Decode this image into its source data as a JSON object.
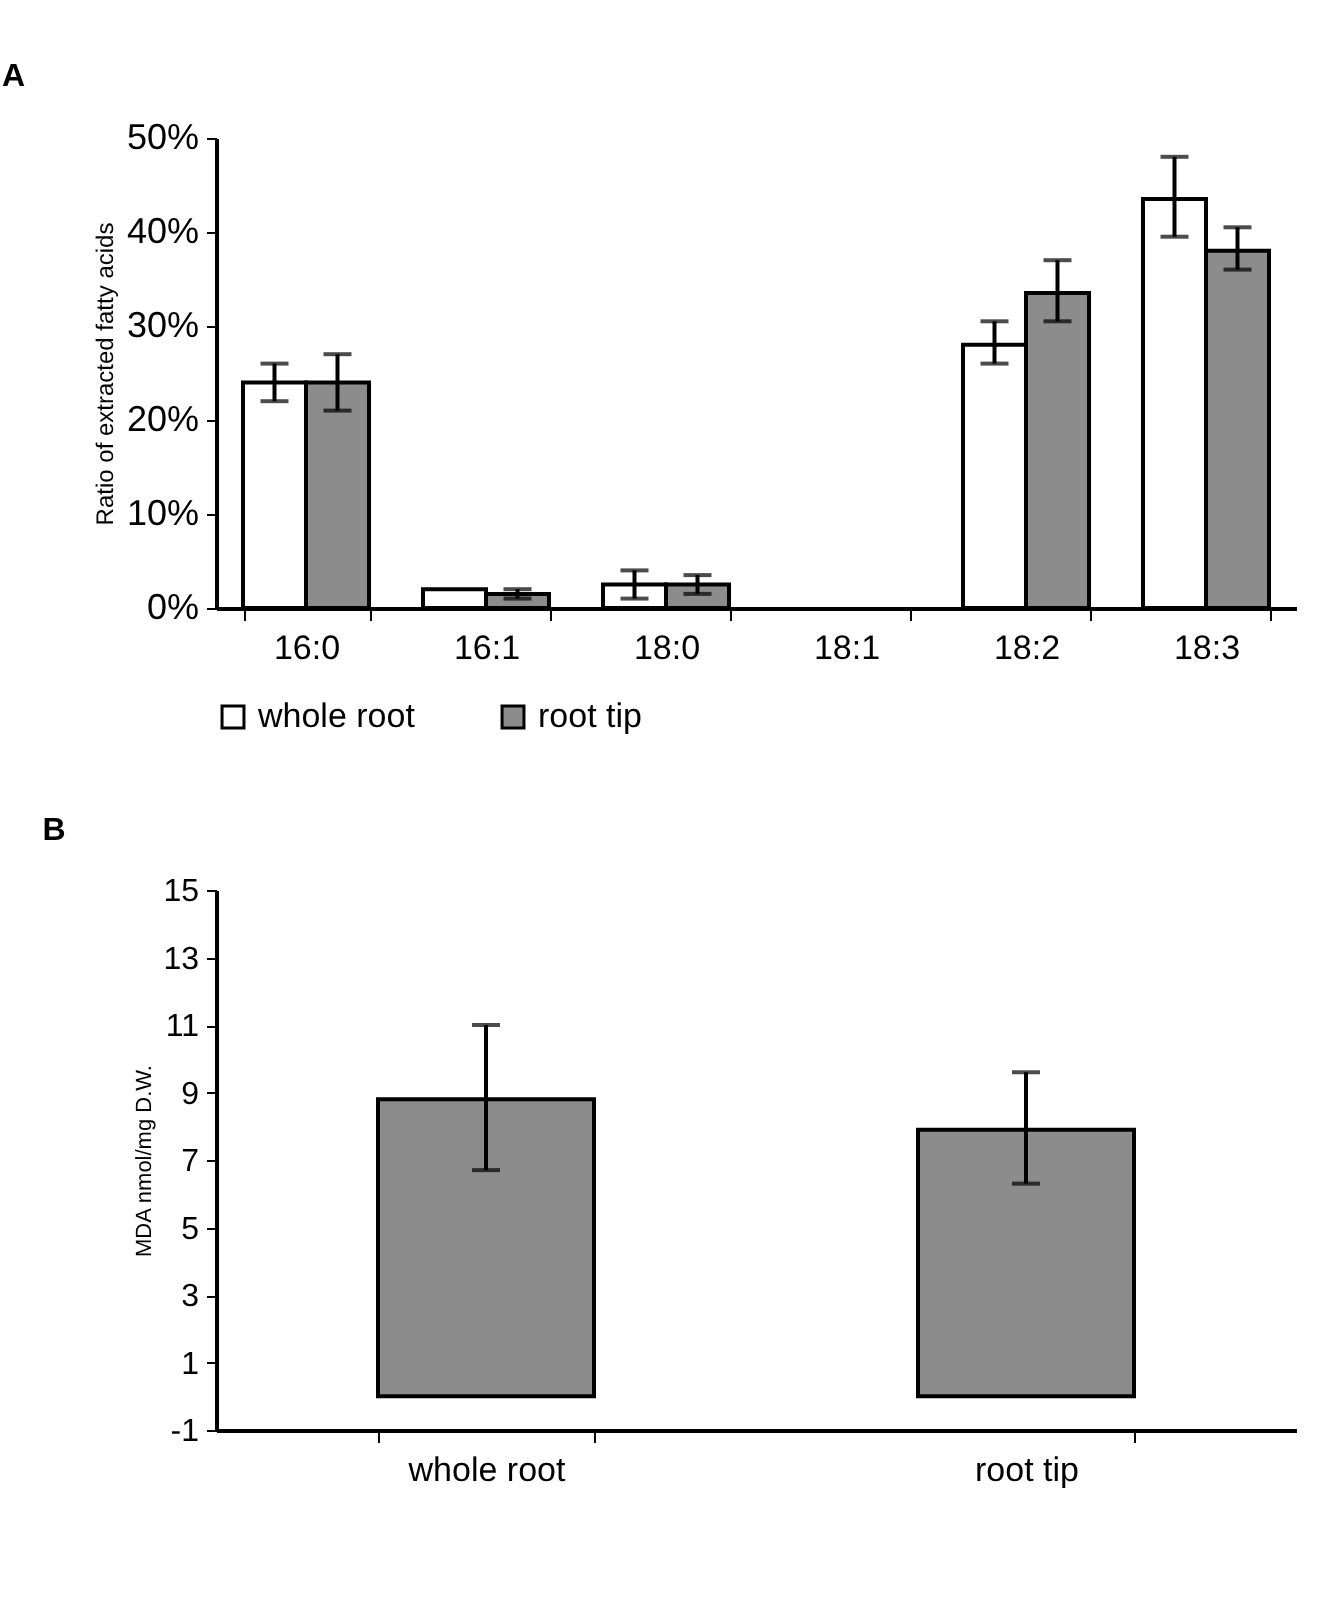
{
  "chart_data": [
    {
      "type": "bar",
      "title": "A",
      "ylabel": "Ratio of extracted fatty acids",
      "categories": [
        "16:0",
        "16:1",
        "18:0",
        "18:1",
        "18:2",
        "18:3"
      ],
      "series": [
        {
          "name": "whole root",
          "color": "#ffffff",
          "values": [
            24,
            2,
            2.5,
            null,
            28,
            43.5
          ],
          "errors": [
            [
              22,
              26
            ],
            null,
            [
              1,
              4
            ],
            null,
            [
              26,
              30.5
            ],
            [
              39.5,
              48
            ]
          ]
        },
        {
          "name": "root tip",
          "color": "#8c8c8c",
          "values": [
            24,
            1.5,
            2.5,
            null,
            33.5,
            38
          ],
          "errors": [
            [
              21,
              27
            ],
            [
              1,
              2
            ],
            [
              1.5,
              3.5
            ],
            null,
            [
              30.5,
              37
            ],
            [
              36,
              40.5
            ]
          ]
        }
      ],
      "ylim": [
        0,
        50
      ],
      "yticks": [
        {
          "value": 0,
          "label": "0%"
        },
        {
          "value": 10,
          "label": "10%"
        },
        {
          "value": 20,
          "label": "20%"
        },
        {
          "value": 30,
          "label": "30%"
        },
        {
          "value": 40,
          "label": "40%"
        },
        {
          "value": 50,
          "label": "50%"
        }
      ],
      "grid": false,
      "legend": "bottom"
    },
    {
      "type": "bar",
      "title": "B",
      "ylabel": "MDA nmol/mg D.W.",
      "categories": [
        "whole root",
        "root tip"
      ],
      "values": [
        8.8,
        7.9
      ],
      "errors": [
        [
          6.7,
          11.0
        ],
        [
          6.3,
          9.6
        ]
      ],
      "color": "#8c8c8c",
      "ylim": [
        -1,
        15
      ],
      "yticks": [
        -1,
        1,
        3,
        5,
        7,
        9,
        11,
        13,
        15
      ],
      "grid": false,
      "legend": false
    }
  ]
}
